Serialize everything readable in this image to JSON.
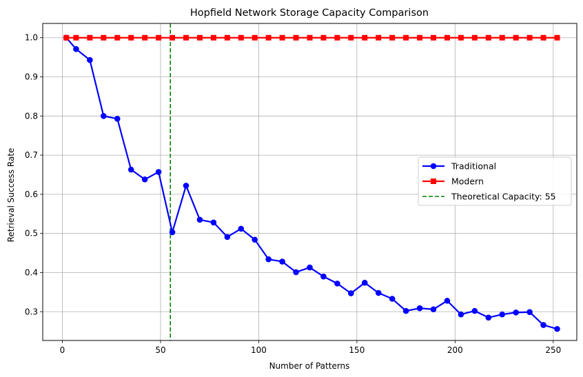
{
  "chart_data": {
    "type": "line",
    "title": "Hopfield Network Storage Capacity Comparison",
    "xlabel": "Number of Patterns",
    "ylabel": "Retrieval Success Rate",
    "xlim": [
      -10,
      262
    ],
    "ylim": [
      0.2265,
      1.0365
    ],
    "xticks": [
      0,
      50,
      100,
      150,
      200,
      250
    ],
    "yticks": [
      0.3,
      0.4,
      0.5,
      0.6,
      0.7,
      0.8,
      0.9,
      1.0
    ],
    "grid": true,
    "legend_position": "center-right",
    "x": [
      2,
      7,
      14,
      21,
      28,
      35,
      42,
      49,
      56,
      63,
      70,
      77,
      84,
      91,
      98,
      105,
      112,
      119,
      126,
      133,
      140,
      147,
      154,
      161,
      168,
      175,
      182,
      189,
      196,
      203,
      210,
      217,
      224,
      231,
      238,
      245,
      252
    ],
    "series": [
      {
        "name": "Traditional",
        "color": "#0000ff",
        "marker": "circle",
        "values": [
          1.0,
          0.971,
          0.943,
          0.8,
          0.793,
          0.663,
          0.638,
          0.657,
          0.503,
          0.622,
          0.535,
          0.528,
          0.491,
          0.512,
          0.484,
          0.434,
          0.428,
          0.401,
          0.413,
          0.39,
          0.372,
          0.347,
          0.374,
          0.348,
          0.333,
          0.302,
          0.309,
          0.306,
          0.328,
          0.293,
          0.302,
          0.285,
          0.293,
          0.298,
          0.299,
          0.266,
          0.256
        ]
      },
      {
        "name": "Modern",
        "color": "#ff0000",
        "marker": "square",
        "values": [
          1.0,
          1.0,
          1.0,
          1.0,
          1.0,
          1.0,
          1.0,
          1.0,
          1.0,
          1.0,
          1.0,
          1.0,
          1.0,
          1.0,
          1.0,
          1.0,
          1.0,
          1.0,
          1.0,
          1.0,
          1.0,
          1.0,
          1.0,
          1.0,
          1.0,
          1.0,
          1.0,
          1.0,
          1.0,
          1.0,
          1.0,
          1.0,
          1.0,
          1.0,
          1.0,
          1.0,
          1.0
        ]
      }
    ],
    "vline": {
      "x": 55,
      "label": "Theoretical Capacity: 55",
      "color": "#008000",
      "style": "dashed"
    }
  }
}
